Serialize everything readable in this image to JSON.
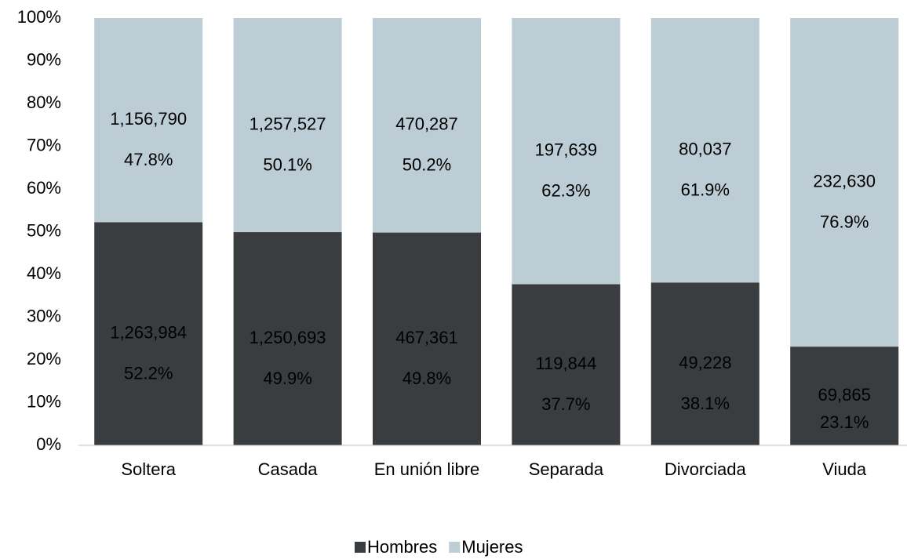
{
  "chart_data": {
    "type": "stacked_bar_100",
    "categories": [
      "Soltera",
      "Casada",
      "En unión libre",
      "Separada",
      "Divorciada",
      "Viuda"
    ],
    "series": [
      {
        "name": "Hombres",
        "color": "#3a3d40",
        "label_color": "#ffffff",
        "values": [
          52.2,
          49.9,
          49.8,
          37.7,
          38.1,
          23.1
        ],
        "value_labels": [
          "52.2%",
          "49.9%",
          "49.8%",
          "37.7%",
          "38.1%",
          "23.1%"
        ],
        "counts": [
          "1,263,984",
          "1,250,693",
          "467,361",
          "119,844",
          "49,228",
          "69,865"
        ]
      },
      {
        "name": "Mujeres",
        "color": "#bccdd5",
        "label_color": "#000000",
        "values": [
          47.8,
          50.1,
          50.2,
          62.3,
          61.9,
          76.9
        ],
        "value_labels": [
          "47.8%",
          "50.1%",
          "50.2%",
          "62.3%",
          "61.9%",
          "76.9%"
        ],
        "counts": [
          "1,156,790",
          "1,257,527",
          "470,287",
          "197,639",
          "80,037",
          "232,630"
        ]
      }
    ],
    "ylim": [
      0,
      100
    ],
    "yticks": [
      {
        "value": 0,
        "label": "0%"
      },
      {
        "value": 10,
        "label": "10%"
      },
      {
        "value": 20,
        "label": "20%"
      },
      {
        "value": 30,
        "label": "30%"
      },
      {
        "value": 40,
        "label": "40%"
      },
      {
        "value": 50,
        "label": "50%"
      },
      {
        "value": 60,
        "label": "60%"
      },
      {
        "value": 70,
        "label": "70%"
      },
      {
        "value": 80,
        "label": "80%"
      },
      {
        "value": 90,
        "label": "90%"
      },
      {
        "value": 100,
        "label": "100%"
      }
    ],
    "legend": "bottom"
  }
}
